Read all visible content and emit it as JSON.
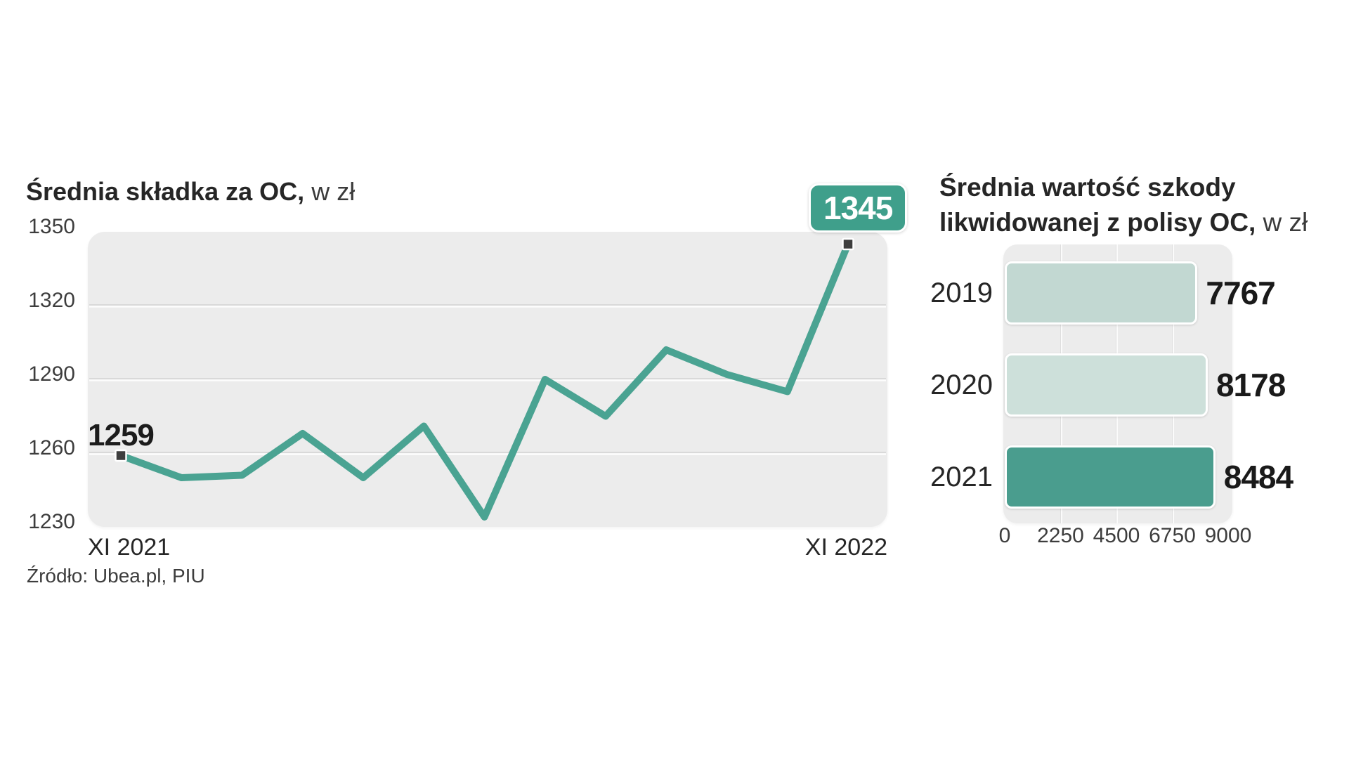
{
  "source": {
    "label": "Źródło: Ubea.pl, PIU"
  },
  "colors": {
    "line": "#4aa392",
    "badge": "#3f9f8b",
    "marker": "#3e3e3e",
    "plot_background": "#ececec",
    "gridline": "#d9d9d9",
    "bar_2019": "#c2d8d2",
    "bar_2020": "#cde0da",
    "bar_2021": "#4a9d8e"
  },
  "chart_data": [
    {
      "type": "line",
      "title_bold": "Średnia składka za OC,",
      "title_light": " w zł",
      "title": "Średnia składka za OC, w zł",
      "x_tick_labels": [
        "XI 2021",
        "XI 2022"
      ],
      "values": [
        1259,
        1250,
        1251,
        1268,
        1250,
        1271,
        1234,
        1290,
        1275,
        1302,
        1292,
        1285,
        1345
      ],
      "point_labels": {
        "first": "1259",
        "last": "1345"
      },
      "yticks": [
        1350,
        1320,
        1290,
        1260,
        1230
      ],
      "ylim": [
        1230,
        1350
      ],
      "grid": "horizontal",
      "line_color": "#4aa392",
      "legend_position": "none"
    },
    {
      "type": "bar",
      "orientation": "horizontal",
      "title_bold_line1": "Średnia wartość szkody",
      "title_bold_line2": "likwidowanej z polisy OC,",
      "title_light": " w zł",
      "title": "Średnia wartość szkody likwidowanej z polisy OC, w zł",
      "categories": [
        "2019",
        "2020",
        "2021"
      ],
      "values": [
        7767,
        8178,
        8484
      ],
      "xticks": [
        0,
        2250,
        4500,
        6750,
        9000
      ],
      "xlim": [
        0,
        9000
      ],
      "grid": "vertical",
      "bar_colors": [
        "#c2d8d2",
        "#cde0da",
        "#4a9d8e"
      ],
      "legend_position": "none"
    }
  ]
}
